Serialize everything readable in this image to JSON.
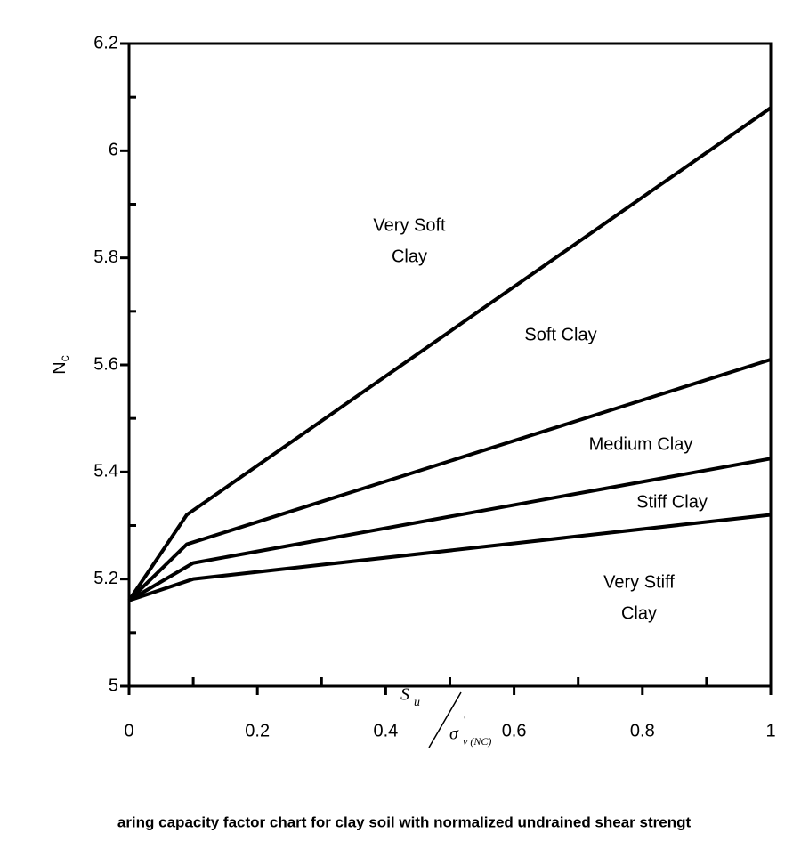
{
  "chart_data": {
    "type": "line",
    "ylabel": "N",
    "ylabel_subscript": "c",
    "xlabel_numerator": "S",
    "xlabel_numerator_subscript": "u",
    "xlabel_denominator": "σ",
    "xlabel_denominator_superscript": "'",
    "xlabel_denominator_subscript": "v (NC)",
    "caption": "aring capacity factor chart for clay soil with normalized undrained shear strengt",
    "xlim": [
      0,
      1
    ],
    "ylim": [
      5,
      6.2
    ],
    "xticks": [
      0,
      0.2,
      0.4,
      0.6,
      0.8,
      1
    ],
    "xticks_minor": [
      0.1,
      0.3,
      0.5,
      0.7,
      0.9
    ],
    "yticks": [
      5,
      5.2,
      5.4,
      5.6,
      5.8,
      6,
      6.2
    ],
    "yticks_minor": [
      5.1,
      5.3,
      5.5,
      5.7,
      5.9,
      6.1
    ],
    "series": [
      {
        "color": "#000000",
        "x": [
          0,
          0.09,
          1
        ],
        "values": [
          5.16,
          5.32,
          6.08
        ]
      },
      {
        "color": "#000000",
        "x": [
          0,
          0.09,
          1
        ],
        "values": [
          5.16,
          5.265,
          5.61
        ]
      },
      {
        "color": "#000000",
        "x": [
          0,
          0.1,
          1
        ],
        "values": [
          5.16,
          5.23,
          5.425
        ]
      },
      {
        "color": "#000000",
        "x": [
          0,
          0.1,
          1
        ],
        "values": [
          5.16,
          5.2,
          5.32
        ]
      }
    ],
    "annotations": [
      [
        "Very Soft",
        "Clay"
      ],
      [
        "Soft Clay"
      ],
      [
        "Medium Clay"
      ],
      [
        "Stiff Clay"
      ],
      [
        "Very Stiff",
        "Clay"
      ]
    ]
  }
}
